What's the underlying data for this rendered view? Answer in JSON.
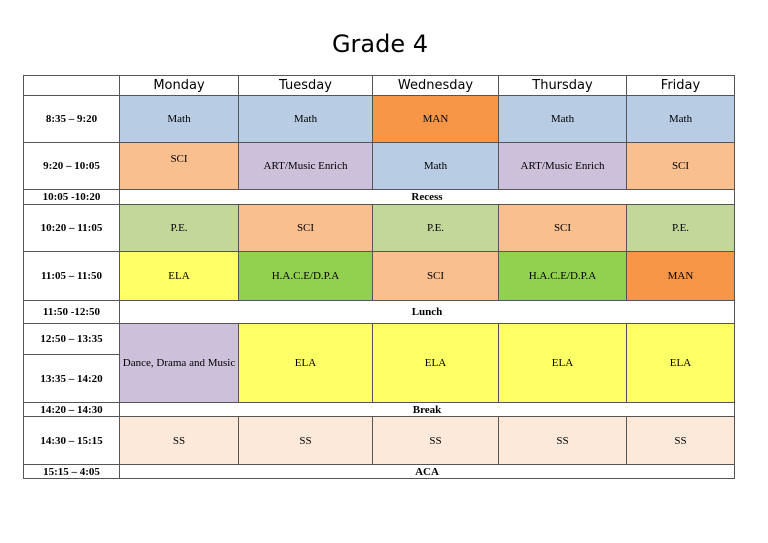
{
  "title": "Grade 4",
  "table": {
    "header": [
      "Monday",
      "Tuesday",
      "Wednesday",
      "Thursday",
      "Friday"
    ],
    "rows": [
      {
        "time": "8:35 – 9:20",
        "cells": [
          "Math",
          "Math",
          "MAN",
          "Math",
          "Math"
        ]
      },
      {
        "time": "9:20 – 10:05",
        "cells": [
          "SCI",
          "ART/Music Enrich",
          "Math",
          "ART/Music Enrich",
          "SCI"
        ]
      },
      {
        "time": "10:05 -10:20",
        "cells": [
          "Recess"
        ]
      },
      {
        "time": "10:20 – 11:05",
        "cells": [
          "P.E.",
          "SCI",
          "P.E.",
          "SCI",
          "P.E."
        ]
      },
      {
        "time": "11:05 – 11:50",
        "cells": [
          "ELA",
          "H.A.C.E/D.P.A",
          "SCI",
          "H.A.C.E/D.P.A",
          "MAN"
        ]
      },
      {
        "time": "11:50 -12:50",
        "cells": [
          "Lunch"
        ]
      },
      {
        "time": "12:50 – 13:35",
        "cells": [
          "Dance, Drama and Music",
          "ELA",
          "ELA",
          "ELA",
          "ELA"
        ]
      },
      {
        "time": "13:35 – 14:20",
        "cells": []
      },
      {
        "time": "14:20 – 14:30",
        "cells": [
          "Break"
        ]
      },
      {
        "time": "14:30 – 15:15",
        "cells": [
          "SS",
          "SS",
          "SS",
          "SS",
          "SS"
        ]
      },
      {
        "time": "15:15 – 4:05",
        "cells": [
          "ACA"
        ]
      }
    ]
  }
}
